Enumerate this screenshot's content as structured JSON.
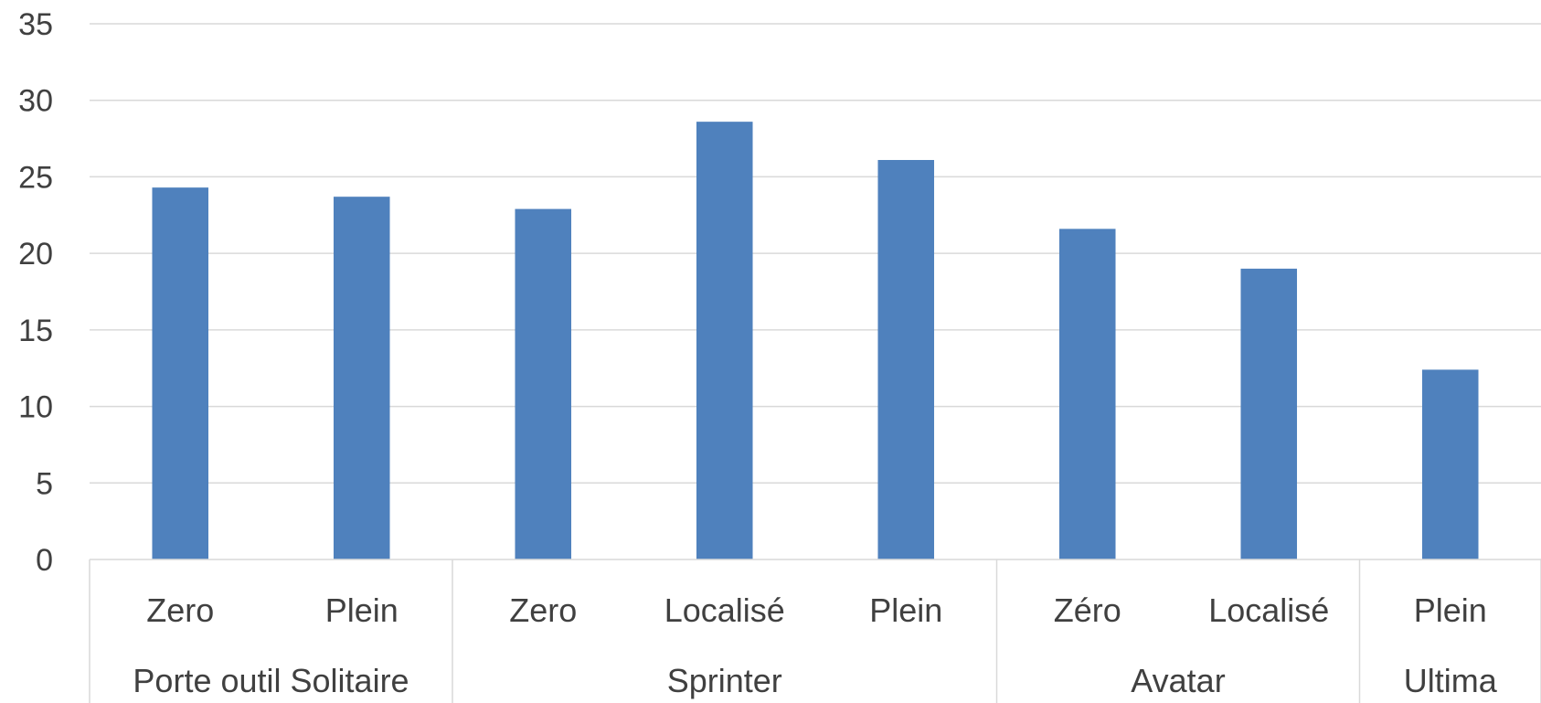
{
  "chart_data": {
    "type": "bar",
    "title": "",
    "xlabel": "",
    "ylabel": "",
    "ylim": [
      0,
      35
    ],
    "yticks": [
      0,
      5,
      10,
      15,
      20,
      25,
      30,
      35
    ],
    "grid": true,
    "legend": "none",
    "bar_color": "#4f81bd",
    "gridline_color": "#d9d9d9",
    "categories": [
      "Zero",
      "Plein",
      "Zero",
      "Localisé",
      "Plein",
      "Zéro",
      "Localisé",
      "Plein"
    ],
    "values": [
      24.3,
      23.7,
      22.9,
      28.6,
      26.1,
      21.6,
      19.0,
      12.4
    ],
    "groups": [
      {
        "label": "Porte outil Solitaire",
        "count": 2
      },
      {
        "label": "Sprinter",
        "count": 3
      },
      {
        "label": "Avatar",
        "count": 2
      },
      {
        "label": "Ultima",
        "count": 1
      }
    ]
  }
}
